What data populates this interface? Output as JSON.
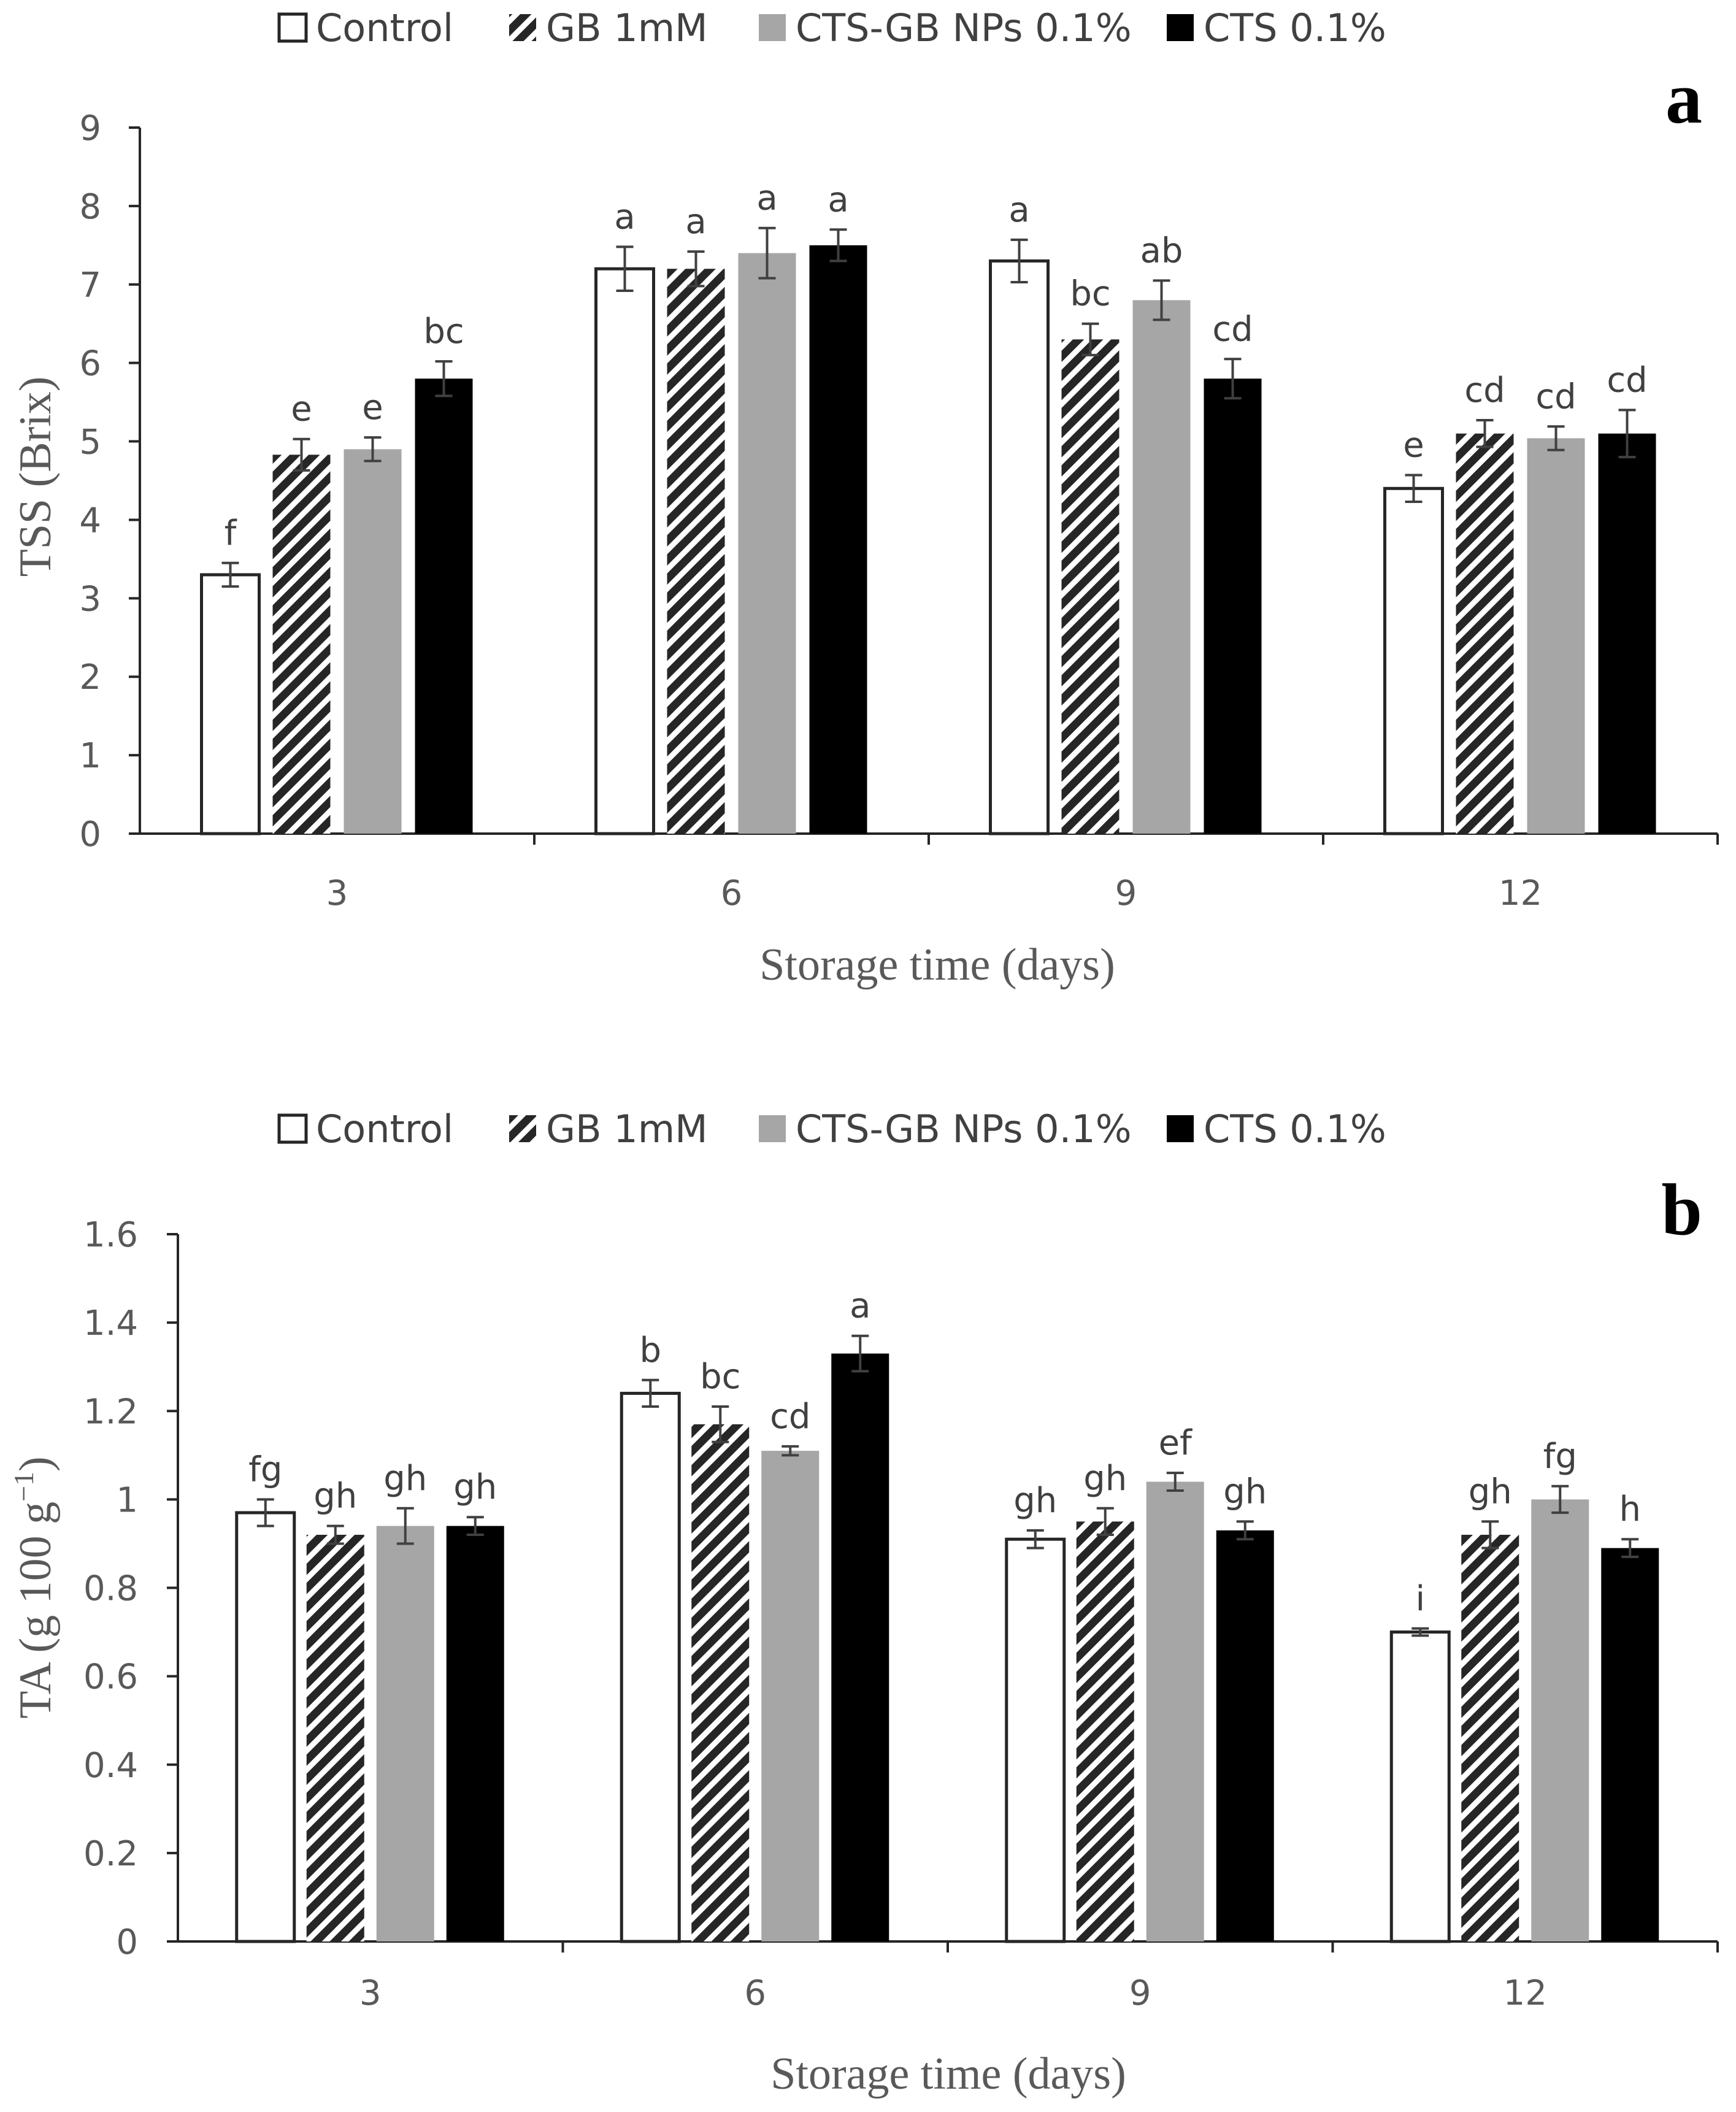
{
  "colors": {
    "control_fill": "#ffffff",
    "gb_hatch": "#262626",
    "cts_gb_fill": "#a6a6a6",
    "cts_fill": "#000000",
    "axis": "#262626",
    "error_bar": "#404040"
  },
  "chart_data": [
    {
      "type": "bar",
      "panel_label": "a",
      "title": "",
      "xlabel": "Storage time (days)",
      "ylabel": "TSS (Brix)",
      "categories": [
        "3",
        "6",
        "9",
        "12"
      ],
      "ylim": [
        0,
        9
      ],
      "yticks": [
        "0",
        "1",
        "2",
        "3",
        "4",
        "5",
        "6",
        "7",
        "8",
        "9"
      ],
      "grid": false,
      "legend_position": "top",
      "series": [
        {
          "name": "Control",
          "values": [
            3.3,
            7.2,
            7.3,
            4.4
          ],
          "errors": [
            0.15,
            0.28,
            0.27,
            0.17
          ],
          "labels": [
            "f",
            "a",
            "a",
            "e"
          ]
        },
        {
          "name": "GB 1mM",
          "values": [
            4.83,
            7.2,
            6.3,
            5.1
          ],
          "errors": [
            0.2,
            0.22,
            0.2,
            0.17
          ],
          "labels": [
            "e",
            "a",
            "bc",
            "cd"
          ]
        },
        {
          "name": "CTS-GB NPs 0.1%",
          "values": [
            4.9,
            7.4,
            6.8,
            5.04
          ],
          "errors": [
            0.15,
            0.32,
            0.25,
            0.15
          ],
          "labels": [
            "e",
            "a",
            "ab",
            "cd"
          ]
        },
        {
          "name": "CTS 0.1%",
          "values": [
            5.8,
            7.5,
            5.8,
            5.1
          ],
          "errors": [
            0.22,
            0.2,
            0.25,
            0.3
          ],
          "labels": [
            "bc",
            "a",
            "cd",
            "cd"
          ]
        }
      ]
    },
    {
      "type": "bar",
      "panel_label": "b",
      "title": "",
      "xlabel": "Storage time (days)",
      "ylabel": "TA (g 100 g",
      "ylabel_sup": "−1",
      "ylabel_end": ")",
      "categories": [
        "3",
        "6",
        "9",
        "12"
      ],
      "ylim": [
        0,
        1.6
      ],
      "yticks": [
        "0",
        "0.2",
        "0.4",
        "0.6",
        "0.8",
        "1",
        "1.2",
        "1.4",
        "1.6"
      ],
      "grid": false,
      "legend_position": "top",
      "series": [
        {
          "name": "Control",
          "values": [
            0.97,
            1.24,
            0.91,
            0.7
          ],
          "errors": [
            0.03,
            0.03,
            0.02,
            0.008
          ],
          "labels": [
            "fg",
            "b",
            "gh",
            "i"
          ]
        },
        {
          "name": "GB 1mM",
          "values": [
            0.92,
            1.17,
            0.95,
            0.92
          ],
          "errors": [
            0.02,
            0.04,
            0.03,
            0.03
          ],
          "labels": [
            "gh",
            "bc",
            "gh",
            "gh"
          ]
        },
        {
          "name": "CTS-GB NPs 0.1%",
          "values": [
            0.94,
            1.11,
            1.04,
            1.0
          ],
          "errors": [
            0.04,
            0.01,
            0.02,
            0.03
          ],
          "labels": [
            "gh",
            "cd",
            "ef",
            "fg"
          ]
        },
        {
          "name": "CTS 0.1%",
          "values": [
            0.94,
            1.33,
            0.93,
            0.89
          ],
          "errors": [
            0.02,
            0.04,
            0.02,
            0.02
          ],
          "labels": [
            "gh",
            "a",
            "gh",
            "h"
          ]
        }
      ]
    }
  ]
}
